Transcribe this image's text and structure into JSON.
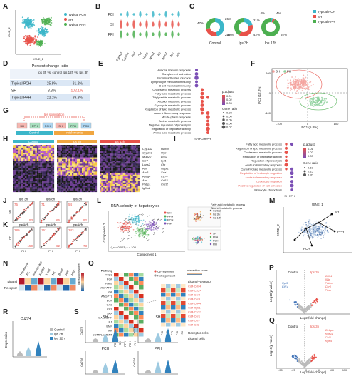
{
  "panels": {
    "A": "A",
    "B": "B",
    "C": "C",
    "D": "D",
    "E": "E",
    "F": "F",
    "G": "G",
    "H": "H",
    "I": "I",
    "J": "J",
    "K": "K",
    "L": "L",
    "M": "M",
    "N": "N",
    "O": "O",
    "P": "P",
    "Q": "Q",
    "R": "R",
    "S": "S"
  },
  "colors": {
    "pch": "#3cb6c9",
    "sh": "#e8524a",
    "pph": "#4caf50",
    "red": "#e8524a",
    "blue": "#3b6fb6"
  },
  "a": {
    "xlabel": "tSNE_1",
    "ylabel": "tSNE_2",
    "legend": [
      "Typical PCH",
      "SH",
      "Typical PPH"
    ]
  },
  "b": {
    "rows": [
      "PCH",
      "SH",
      "PPH"
    ],
    "genes": [
      "Cyp1a2",
      "Cyp2e1",
      "Glul",
      "Oat",
      "Hamp",
      "Apoa1",
      "Alb",
      "Apoc1",
      "Apc",
      "Sds"
    ]
  },
  "c": {
    "groups": [
      {
        "label": "Control",
        "pcts": [
          "47%",
          "26%",
          "28%"
        ]
      },
      {
        "label": "Ips 3h",
        "pcts": [
          "21%",
          "37%",
          "42%"
        ]
      },
      {
        "label": "Ips 12h",
        "pcts": [
          "4%",
          "4%",
          "92%"
        ]
      }
    ],
    "legend": [
      "Typical PCH",
      "SH",
      "Typical PPH"
    ]
  },
  "d": {
    "title": "Percent change ratio",
    "col1": "Ips 3h vs. control",
    "col2": "Ips 12h vs. Ips 3h",
    "rows": [
      {
        "label": "Typical PCH",
        "v1": "-25.8%",
        "v2": "-81.2%"
      },
      {
        "label": "SH",
        "v1": "-3.3%",
        "v2": "102.1%"
      },
      {
        "label": "Typical PPH",
        "v1": "-22.1%",
        "v2": "-89.3%"
      }
    ]
  },
  "e": {
    "terms": [
      "Humoral immune response",
      "Complement activation",
      "Protein activation cascade",
      "Lymphocyte mediated immunity",
      "B cell mediated immunity",
      "Cholesterol metabolic process",
      "Fatty acid metabolic process",
      "Triglyceride metabolic process",
      "Alcohol metabolic process",
      "Glycolysis metabolic process",
      "Regulation of lipid metabolic process",
      "Acute inflammatory response",
      "Acute-phase response",
      "Amine metabolic process",
      "Negative regulation of proteolysis",
      "Regulation of peptidase activity",
      "Amino acid metabolic process"
    ],
    "xcats": [
      "SH",
      "PCH",
      "PPH"
    ],
    "legend_title": "p.adjust",
    "legend_vals": [
      "0.01",
      "0.02",
      "0.03"
    ],
    "size_title": "Gene ratio",
    "size_vals": [
      "0.03",
      "0.04",
      "0.05",
      "0.06",
      "0.07"
    ]
  },
  "f": {
    "legend": [
      "SH",
      "PH"
    ],
    "xlabel": "PC1 (5.8%)",
    "ylabel": "PC2 (12.2%)",
    "xticks": [
      "-100",
      "0",
      "100"
    ],
    "yticks": [
      "100",
      "0",
      "-100"
    ]
  },
  "g": {
    "stim": "Ips stimulation",
    "cells": [
      "SH",
      "PPH",
      "PCH",
      "SH",
      "PPH",
      "PCH"
    ],
    "groups": [
      "Control",
      "Imiclomonia"
    ]
  },
  "h": {
    "cols": [
      "Control",
      "Ips 3h",
      "Ips 12h"
    ],
    "genes": [
      "Cyp1a2",
      "Cyp2e1",
      "Mup20",
      "Slc7",
      "Lpas2",
      "Ahr",
      "Arc3",
      "Abcg4",
      "Abc",
      "Pabp1",
      "Igfbp2",
      "Hamp",
      "Mgc",
      "Lcn2",
      "Lyf1",
      "Cfb",
      "Nupr1",
      "Saa1",
      "Cd74",
      "Cd63",
      "Cxcl2"
    ]
  },
  "i": {
    "terms": [
      "Fatty acid metabolic process",
      "Regulation of lipid metabolic process",
      "Cholesterol metabolic process",
      "Regulation of peptidase activity",
      "Regulation of proteolysis",
      "Acute inflammatory response",
      "Carbohydrate metabolic process",
      "Regulation of leukocyte migration",
      "Acute inflammatory response",
      "Leukocyte migration",
      "Positive regulation of cell adhesion",
      "Monocyte chemotaxis"
    ],
    "red_idx": [
      7,
      8,
      9,
      10
    ],
    "xcats": [
      "SH",
      "PPH"
    ],
    "legend_title": "p.adjust",
    "legend_vals": [
      "0.01",
      "0.02",
      "0.03"
    ],
    "size_title": "Gene ratio",
    "size_vals": [
      "0.10",
      "0.15",
      "0.20"
    ]
  },
  "j": {
    "plots": [
      {
        "title": "Ips 3h",
        "tl": "75",
        "br": "93",
        "xl": "PH",
        "yl": "SH"
      },
      {
        "title": "Ips 8h",
        "tl": "71",
        "br": "66",
        "xl": "PH",
        "yl": ""
      },
      {
        "title": "Ips 3h",
        "tl": "54",
        "br": "92",
        "xl": "PH",
        "yl": ""
      }
    ]
  },
  "k": {
    "plots": [
      {
        "title": "Ips 12h",
        "tl": "280",
        "br": "150",
        "xl": "PH",
        "yl": "PH"
      },
      {
        "title": "Ips 12h",
        "tl": "161",
        "br": "62",
        "xl": "PH",
        "yl": ""
      },
      {
        "title": "Ips 12h",
        "tl": "243",
        "br": "73",
        "xl": "PH",
        "yl": ""
      }
    ]
  },
  "l": {
    "title": "RNA velocity of hepatocytes",
    "legend": [
      "SH",
      "PPH",
      "PCH",
      "PIH"
    ],
    "xlabel": "Component 1",
    "ylabel": "Component 2",
    "note": "V_c = 0.003; s = 100",
    "leg2": [
      "Control",
      "Ips 3h",
      "Ips 12h"
    ],
    "leg3": [
      "SH",
      "PPH",
      "PCH",
      "PIH"
    ],
    "mini": [
      "Fatty acid metabolic process",
      "Alcohol metabolic process"
    ]
  },
  "m": {
    "xlabel": "tSNE_1",
    "ylabel": "tSNE_2",
    "labels": [
      "SH",
      "PPH",
      "PCH"
    ]
  },
  "n": {
    "cats": [
      "Hepatocyte",
      "EC",
      "Macrophage",
      "Kupffer",
      "T cell",
      "NK",
      "B cell",
      "pDC",
      "HSC"
    ],
    "rows": [
      "Ligand",
      "Receptor"
    ],
    "legend_title": "Interaction score"
  },
  "o": {
    "pathways": [
      "Pathway",
      "CXCL",
      "FGF",
      "PARs",
      "VISFATIN",
      "IGF",
      "ANGPTL",
      "EGF",
      "GAS",
      "CCL",
      "SAA",
      "GALECTIN",
      "IL6",
      "BMP",
      "MIF",
      "COMPLEMENT"
    ],
    "legend": [
      "Up-regulated",
      "Not significant"
    ],
    "lr_title": "Ligand-Receptor",
    "lr": [
      "Cd4-Cd74",
      "Cd4-Cxcr4",
      "Cd4-Ccr2",
      "Cd4-Ccr5",
      "Cd4-Cd44",
      "Cd4-Itgb1",
      "Cd4-Cxcr3",
      "Cd4-Ccr1",
      "Cd4-Ccr7",
      "Cd4-Cd2"
    ],
    "xcats": [
      "PCH",
      "SH",
      "PPH",
      "PCH",
      "PIH"
    ],
    "sender": "Ligand cells",
    "receiver": "Receptor cells",
    "score_title": "Interaction score",
    "score_vals": [
      "0.25",
      "0.25",
      "0.50",
      "0.75"
    ]
  },
  "p": {
    "left": "Control",
    "right": "Ips 3h",
    "genes": [
      "Cd74",
      "Il1b",
      "Fabp4",
      "Ccr1",
      "Ptpn"
    ],
    "left_genes": [
      "Rpl3",
      "Eif1a"
    ],
    "xlabel": "Log2(fold-change)",
    "ylabel": "-Log10(p value)"
  },
  "q": {
    "left": "Control",
    "right": "Ips 3h",
    "genes": [
      "Cebpa",
      "Rps11",
      "Ccl2",
      "Rps4"
    ],
    "xlabel": "Log2(fold-change)",
    "ylabel": "-Log10(p value)",
    "xticks": [
      "-50",
      "-25",
      "0",
      "50",
      "100",
      "150"
    ]
  },
  "r": {
    "gene": "Cd274",
    "ylabel": "Expression",
    "legend": [
      "Control",
      "Ips 3h",
      "Ips 12h"
    ]
  },
  "s": {
    "plots": [
      {
        "title": "SH",
        "gene": "Cd274"
      },
      {
        "title": "SH",
        "gene": "Cd274"
      },
      {
        "title": "PCH",
        "gene": "Cd274"
      },
      {
        "title": "PPH",
        "gene": "Cd274"
      }
    ]
  }
}
